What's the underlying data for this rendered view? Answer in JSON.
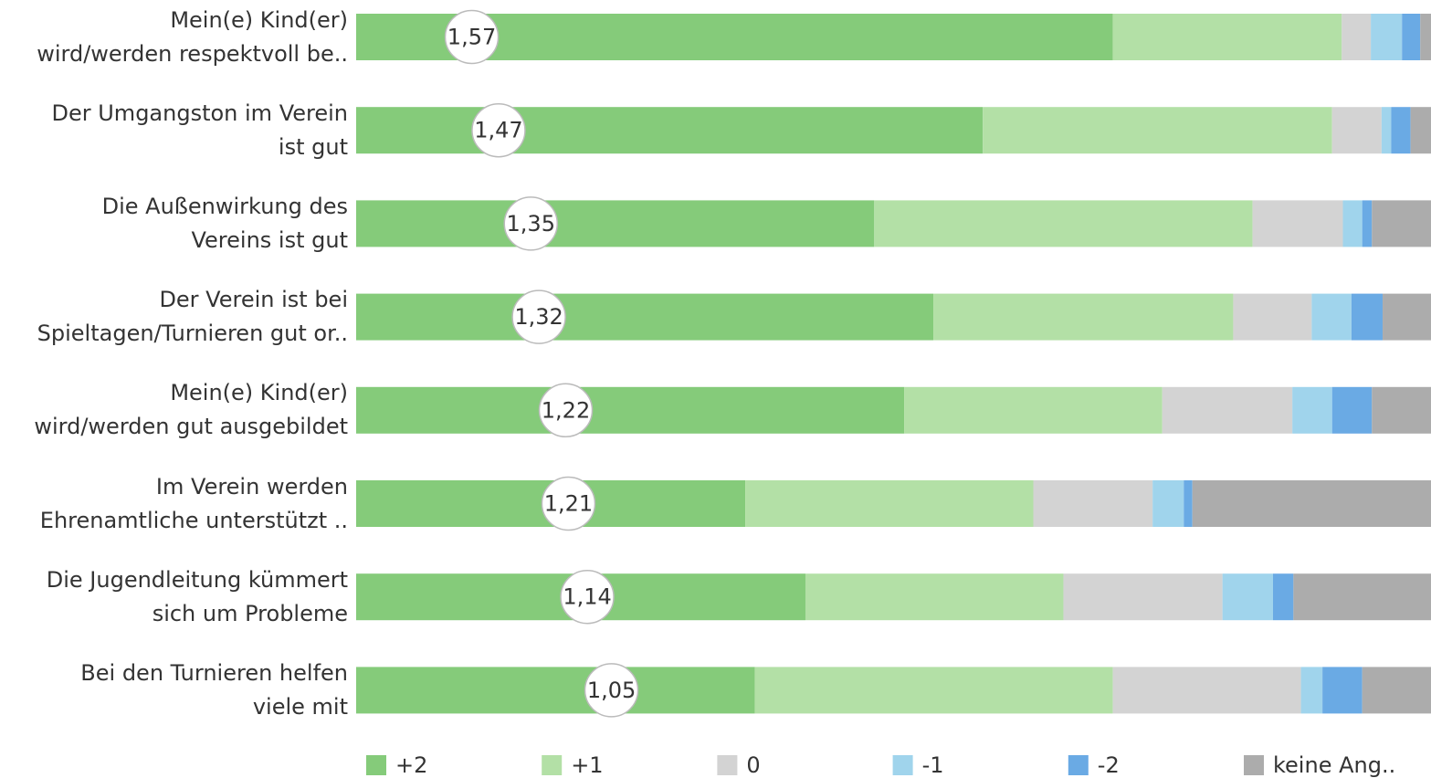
{
  "chart_data": {
    "type": "stacked_bar_100",
    "categories": [
      "Mein(e) Kind(er)\nwird/werden respektvoll be..",
      "Der Umgangston im Verein\nist gut",
      "Die Außenwirkung des\nVereins ist gut",
      "Der Verein ist bei\nSpieltagen/Turnieren gut or..",
      "Mein(e) Kind(er)\nwird/werden gut ausgebildet",
      "Im Verein werden\nEhrenamtliche unterstützt ..",
      "Die Jugendleitung kümmert\nsich um Probleme",
      "Bei den Turnieren helfen\nviele mit"
    ],
    "series": [
      {
        "name": "+2",
        "color": "#85cb7a",
        "values": [
          70.4,
          58.3,
          48.2,
          53.7,
          51.0,
          36.2,
          41.8,
          37.1
        ]
      },
      {
        "name": "+1",
        "color": "#b3e0a6",
        "values": [
          21.3,
          32.5,
          35.2,
          27.9,
          24.0,
          26.8,
          24.0,
          33.3
        ]
      },
      {
        "name": "0",
        "color": "#d3d3d3",
        "values": [
          2.7,
          4.6,
          8.4,
          7.3,
          12.1,
          11.1,
          14.8,
          17.5
        ]
      },
      {
        "name": "-1",
        "color": "#a0d4ec",
        "values": [
          2.9,
          0.9,
          1.8,
          3.7,
          3.7,
          2.9,
          4.7,
          2.0
        ]
      },
      {
        "name": "-2",
        "color": "#6aaae4",
        "values": [
          1.7,
          1.8,
          0.9,
          2.9,
          3.7,
          0.8,
          1.9,
          3.7
        ]
      },
      {
        "name": "keine Ang..",
        "color": "#acacac",
        "values": [
          1.0,
          1.9,
          5.5,
          4.5,
          5.5,
          22.2,
          12.8,
          6.4
        ]
      }
    ],
    "xlim": [
      0,
      100
    ],
    "averages": {
      "values": [
        1.57,
        1.47,
        1.35,
        1.32,
        1.22,
        1.21,
        1.14,
        1.05
      ],
      "value_labels": [
        "1,57",
        "1,47",
        "1,35",
        "1,32",
        "1,22",
        "1,21",
        "1,14",
        "1,05"
      ],
      "lim": [
        2,
        -2
      ]
    },
    "legend": "bottom"
  }
}
